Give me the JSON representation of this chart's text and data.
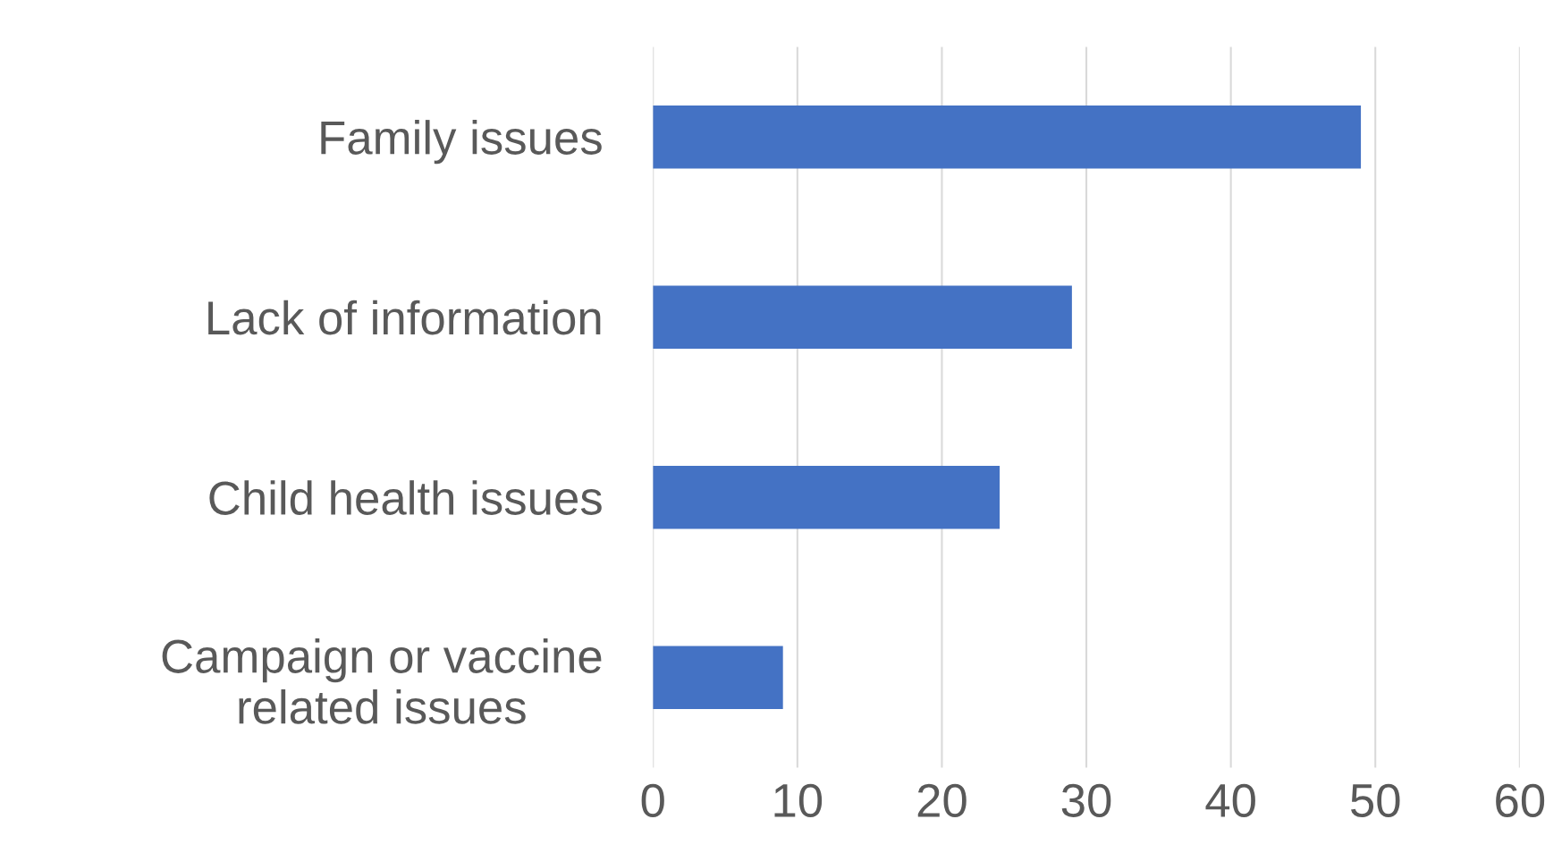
{
  "chart_data": {
    "type": "bar",
    "orientation": "horizontal",
    "categories": [
      "Family issues",
      "Lack of information",
      "Child health issues",
      "Campaign or vaccine related issues"
    ],
    "values": [
      49,
      29,
      24,
      9
    ],
    "color": "#4472c4",
    "xlim": [
      0,
      60
    ],
    "xticks": [
      0,
      10,
      20,
      30,
      40,
      50,
      60
    ],
    "grid": "x"
  }
}
